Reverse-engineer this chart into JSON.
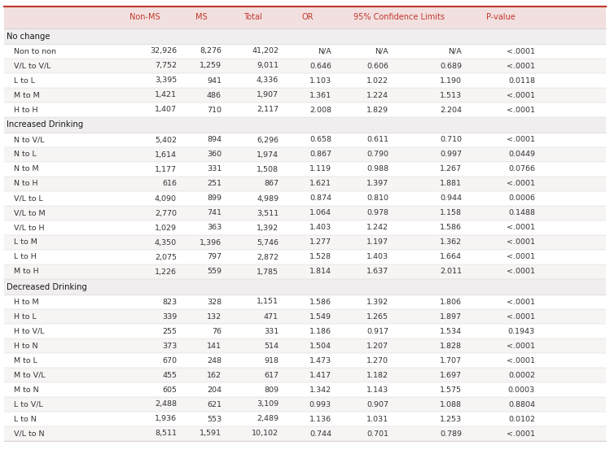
{
  "sections": [
    {
      "header": "No change",
      "rows": [
        [
          "Non to non",
          "32,926",
          "8,276",
          "41,202",
          "N/A",
          "N/A",
          "N/A",
          "<.0001"
        ],
        [
          "V/L to V/L",
          "7,752",
          "1,259",
          "9,011",
          "0.646",
          "0.606",
          "0.689",
          "<.0001"
        ],
        [
          "L to L",
          "3,395",
          "941",
          "4,336",
          "1.103",
          "1.022",
          "1.190",
          "0.0118"
        ],
        [
          "M to M",
          "1,421",
          "486",
          "1,907",
          "1.361",
          "1.224",
          "1.513",
          "<.0001"
        ],
        [
          "H to H",
          "1,407",
          "710",
          "2,117",
          "2.008",
          "1.829",
          "2.204",
          "<.0001"
        ]
      ]
    },
    {
      "header": "Increased Drinking",
      "rows": [
        [
          "N to V/L",
          "5,402",
          "894",
          "6,296",
          "0.658",
          "0.611",
          "0.710",
          "<.0001"
        ],
        [
          "N to L",
          "1,614",
          "360",
          "1,974",
          "0.867",
          "0.790",
          "0.997",
          "0.0449"
        ],
        [
          "N to M",
          "1,177",
          "331",
          "1,508",
          "1.119",
          "0.988",
          "1.267",
          "0.0766"
        ],
        [
          "N to H",
          "616",
          "251",
          "867",
          "1.621",
          "1.397",
          "1.881",
          "<.0001"
        ],
        [
          "V/L to L",
          "4,090",
          "899",
          "4,989",
          "0.874",
          "0.810",
          "0.944",
          "0.0006"
        ],
        [
          "V/L to M",
          "2,770",
          "741",
          "3,511",
          "1.064",
          "0.978",
          "1.158",
          "0.1488"
        ],
        [
          "V/L to H",
          "1,029",
          "363",
          "1,392",
          "1.403",
          "1.242",
          "1.586",
          "<.0001"
        ],
        [
          "L to M",
          "4,350",
          "1,396",
          "5,746",
          "1.277",
          "1.197",
          "1.362",
          "<.0001"
        ],
        [
          "L to H",
          "2,075",
          "797",
          "2,872",
          "1.528",
          "1.403",
          "1.664",
          "<.0001"
        ],
        [
          "M to H",
          "1,226",
          "559",
          "1,785",
          "1.814",
          "1.637",
          "2.011",
          "<.0001"
        ]
      ]
    },
    {
      "header": "Decreased Drinking",
      "rows": [
        [
          "H to M",
          "823",
          "328",
          "1,151",
          "1.586",
          "1.392",
          "1.806",
          "<.0001"
        ],
        [
          "H to L",
          "339",
          "132",
          "471",
          "1.549",
          "1.265",
          "1.897",
          "<.0001"
        ],
        [
          "H to V/L",
          "255",
          "76",
          "331",
          "1.186",
          "0.917",
          "1.534",
          "0.1943"
        ],
        [
          "H to N",
          "373",
          "141",
          "514",
          "1.504",
          "1.207",
          "1.828",
          "<.0001"
        ],
        [
          "M to L",
          "670",
          "248",
          "918",
          "1.473",
          "1.270",
          "1.707",
          "<.0001"
        ],
        [
          "M to V/L",
          "455",
          "162",
          "617",
          "1.417",
          "1.182",
          "1.697",
          "0.0002"
        ],
        [
          "M to N",
          "605",
          "204",
          "809",
          "1.342",
          "1.143",
          "1.575",
          "0.0003"
        ],
        [
          "L to V/L",
          "2,488",
          "621",
          "3,109",
          "0.993",
          "0.907",
          "1.088",
          "0.8804"
        ],
        [
          "L to N",
          "1,936",
          "553",
          "2,489",
          "1.136",
          "1.031",
          "1.253",
          "0.0102"
        ],
        [
          "V/L to N",
          "8,511",
          "1,591",
          "10,102",
          "0.744",
          "0.701",
          "0.789",
          "<.0001"
        ]
      ]
    }
  ],
  "col_headers": [
    "Non-MS",
    "MS",
    "Total",
    "OR",
    "95% Confidence Limits",
    "P-value"
  ],
  "header_bg": "#f2e0e0",
  "section_bg": "#f0eeee",
  "row_bg1": "#ffffff",
  "row_bg2": "#f7f4f4",
  "header_fg": "#c0392b",
  "body_fg": "#333333",
  "section_fg": "#1a1a1a",
  "top_line_color": "#c0392b",
  "grid_color": "#d8d0d0",
  "bg_color": "#ffffff",
  "font_size": 6.8,
  "section_font_size": 7.2,
  "header_font_size": 7.0
}
